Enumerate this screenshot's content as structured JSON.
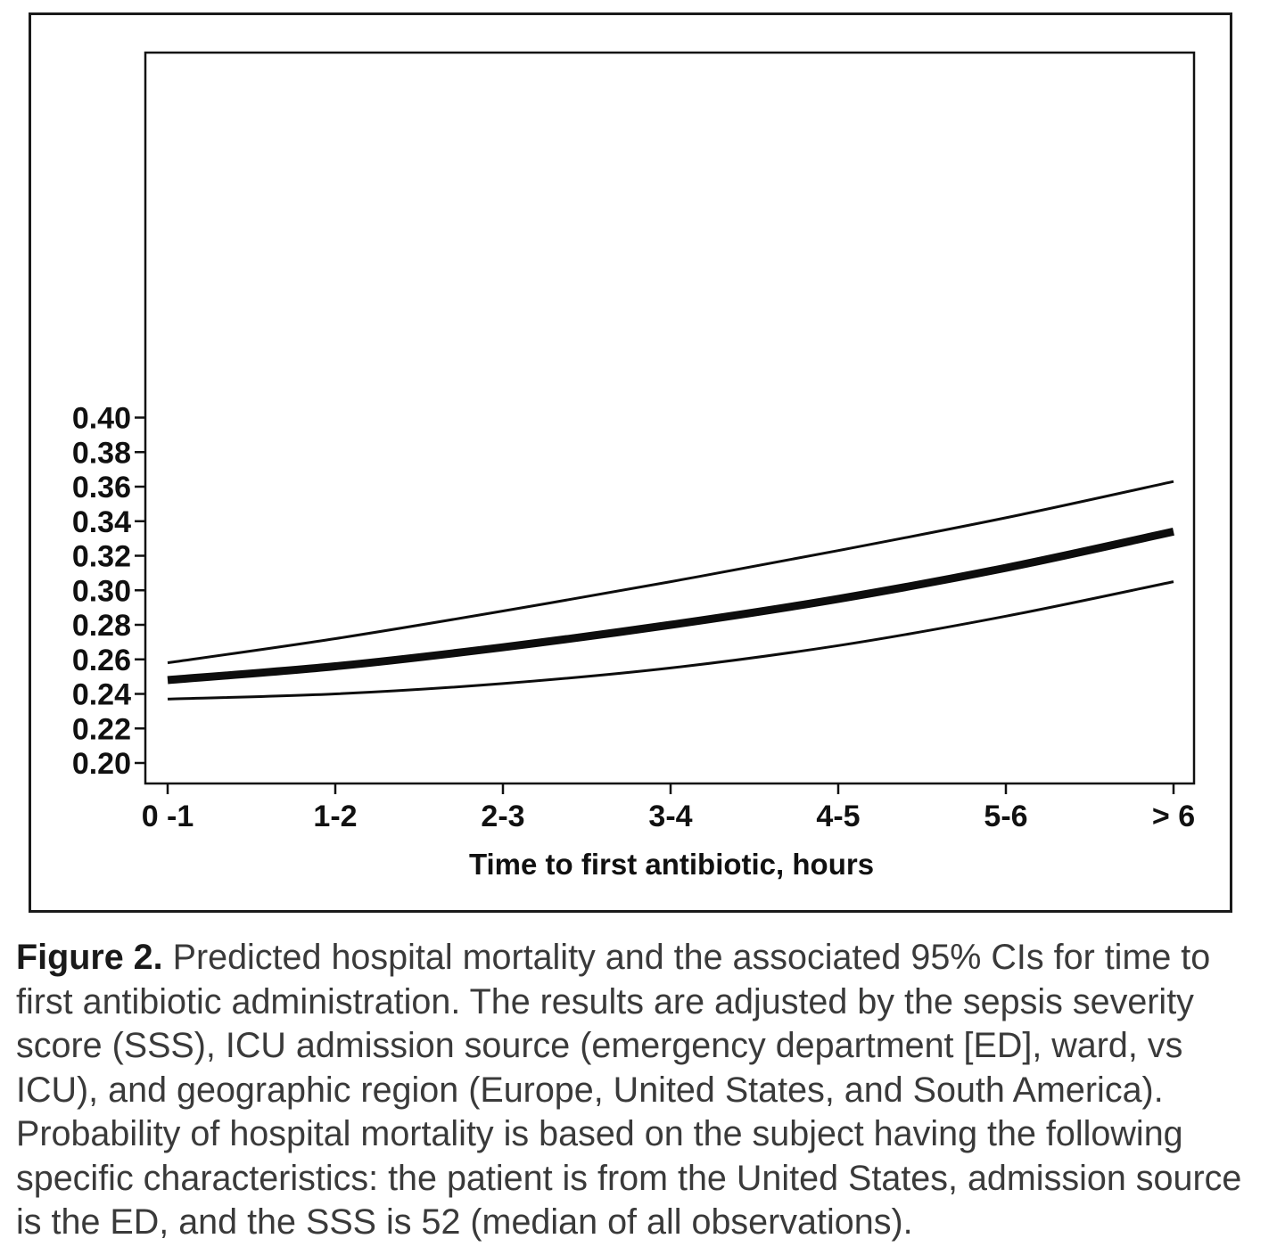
{
  "chart_data": {
    "type": "line",
    "xlabel": "Time to first antibiotic, hours",
    "ylabel": "",
    "categories": [
      "0 -1",
      "1-2",
      "2-3",
      "3-4",
      "4-5",
      "5-6",
      "> 6"
    ],
    "yticks": [
      "0.20",
      "0.22",
      "0.24",
      "0.26",
      "0.28",
      "0.30",
      "0.32",
      "0.34",
      "0.36",
      "0.38",
      "0.40"
    ],
    "ylim": [
      0.2,
      0.4
    ],
    "grid": false,
    "series": [
      {
        "role": "estimate",
        "values": [
          0.248,
          0.256,
          0.267,
          0.28,
          0.295,
          0.313,
          0.334
        ]
      },
      {
        "role": "upper-ci",
        "values": [
          0.258,
          0.272,
          0.288,
          0.305,
          0.323,
          0.342,
          0.363
        ]
      },
      {
        "role": "lower-ci",
        "values": [
          0.237,
          0.24,
          0.246,
          0.255,
          0.268,
          0.285,
          0.305
        ]
      }
    ]
  },
  "caption": {
    "label": "Figure 2.",
    "text": " Predicted hospital mortality and the associated 95% CIs for time to first antibiotic administration. The results are adjusted by the sepsis severity score (SSS), ICU admission source (emergency department [ED], ward, vs ICU), and geographic region (Europe, United States, and South America). Probability of hospital mortality is based on the subject having the following specific characteristics: the patient is from the United States, admission source is the ED, and the SSS is 52 (median of all observations)."
  }
}
